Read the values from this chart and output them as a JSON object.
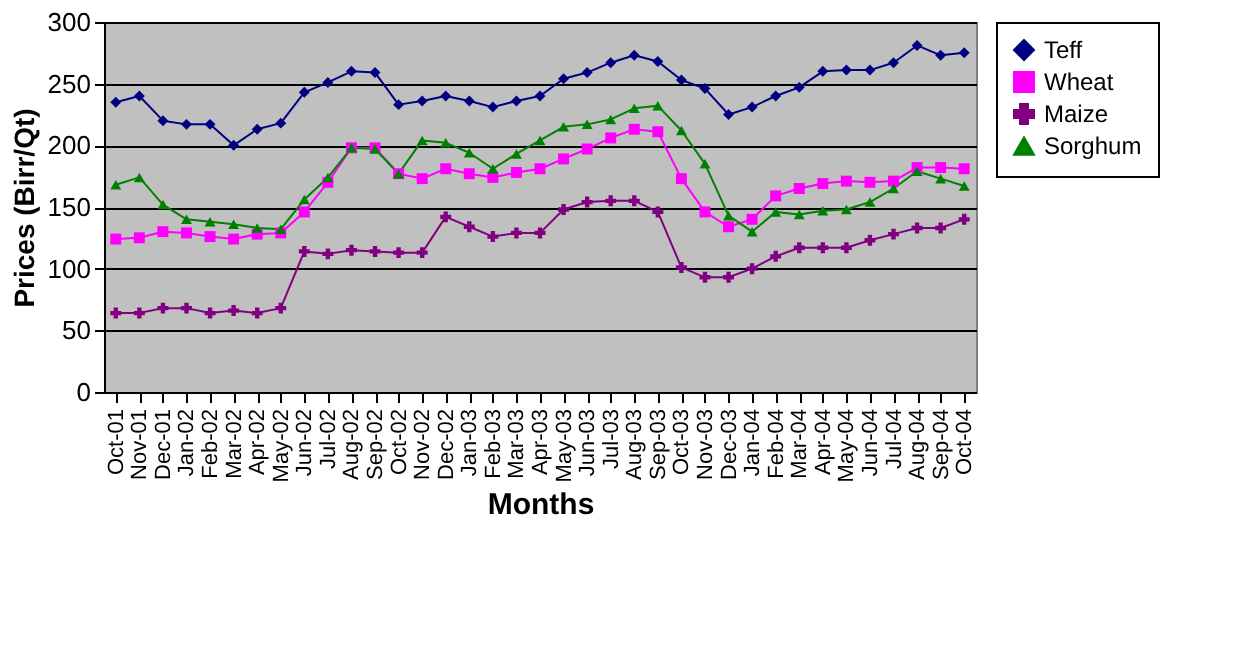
{
  "chart_data": {
    "type": "line",
    "xlabel": "Months",
    "ylabel": "Prices (Birr/Qt)",
    "categories": [
      "Oct-01",
      "Nov-01",
      "Dec-01",
      "Jan-02",
      "Feb-02",
      "Mar-02",
      "Apr-02",
      "May-02",
      "Jun-02",
      "Jul-02",
      "Aug-02",
      "Sep-02",
      "Oct-02",
      "Nov-02",
      "Dec-02",
      "Jan-03",
      "Feb-03",
      "Mar-03",
      "Apr-03",
      "May-03",
      "Jun-03",
      "Jul-03",
      "Aug-03",
      "Sep-03",
      "Oct-03",
      "Nov-03",
      "Dec-03",
      "Jan-04",
      "Feb-04",
      "Mar-04",
      "Apr-04",
      "May-04",
      "Jun-04",
      "Jul-04",
      "Aug-04",
      "Sep-04",
      "Oct-04"
    ],
    "series": [
      {
        "name": "Teff",
        "color": "#000080",
        "marker": "diamond",
        "values": [
          235,
          240,
          220,
          217,
          217,
          200,
          213,
          218,
          243,
          251,
          260,
          259,
          233,
          236,
          240,
          236,
          231,
          236,
          240,
          254,
          259,
          267,
          273,
          268,
          253,
          246,
          225,
          231,
          240,
          247,
          260,
          261,
          261,
          267,
          281,
          273,
          275
        ]
      },
      {
        "name": "Wheat",
        "color": "#ff00ff",
        "marker": "square",
        "values": [
          124,
          125,
          130,
          129,
          126,
          124,
          128,
          129,
          146,
          170,
          198,
          198,
          177,
          173,
          181,
          177,
          174,
          178,
          181,
          189,
          197,
          206,
          213,
          211,
          173,
          146,
          134,
          140,
          159,
          165,
          169,
          171,
          170,
          171,
          182,
          182,
          181
        ]
      },
      {
        "name": "Maize",
        "color": "#800080",
        "marker": "cross",
        "values": [
          64,
          64,
          68,
          68,
          64,
          66,
          64,
          68,
          114,
          112,
          115,
          114,
          113,
          113,
          142,
          134,
          126,
          129,
          129,
          148,
          154,
          155,
          155,
          146,
          101,
          93,
          93,
          100,
          110,
          117,
          117,
          117,
          123,
          128,
          133,
          133,
          140
        ]
      },
      {
        "name": "Sorghum",
        "color": "#008000",
        "marker": "triangle",
        "values": [
          168,
          174,
          152,
          140,
          138,
          136,
          133,
          132,
          156,
          174,
          198,
          197,
          177,
          204,
          202,
          194,
          181,
          193,
          204,
          215,
          217,
          221,
          230,
          232,
          212,
          185,
          143,
          130,
          146,
          144,
          147,
          148,
          154,
          165,
          179,
          173,
          167
        ]
      }
    ],
    "ylim": [
      0,
      300
    ],
    "yticks": [
      0,
      50,
      100,
      150,
      200,
      250,
      300
    ],
    "grid": "y",
    "legend": "right"
  }
}
